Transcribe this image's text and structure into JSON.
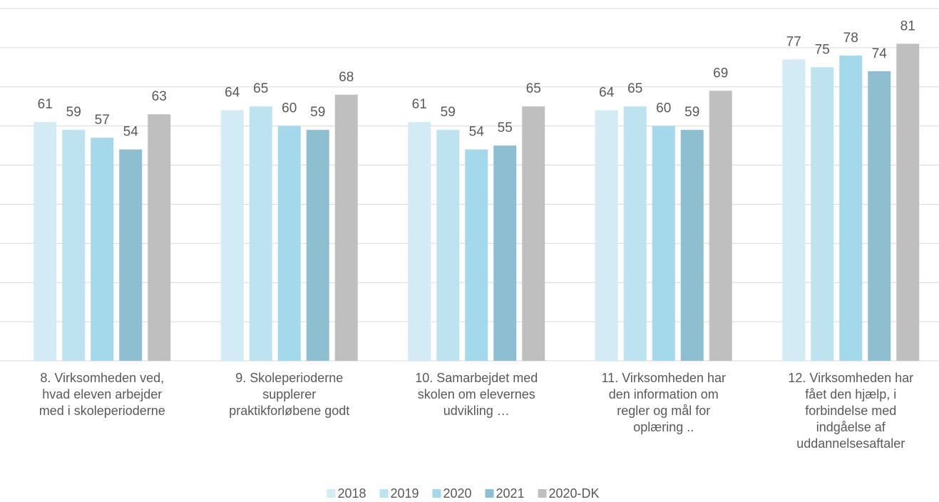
{
  "chart_data": {
    "type": "bar",
    "categories": [
      "8. Virksomheden ved,\nhvad eleven arbejder\nmed i skoleperioderne",
      "9. Skoleperioderne\nsupplerer\npraktikforløbene godt",
      "10. Samarbejdet med\nskolen om elevernes\nudvikling …",
      "11. Virksomheden har\nden information om\nregler og mål for\noplæring ..",
      "12. Virksomheden har\nfået den hjælp,  i\nforbindelse med\nindgåelse af\nuddannelsesaftaler"
    ],
    "series": [
      {
        "name": "2018",
        "color": "#d3ebf5",
        "values": [
          61,
          64,
          61,
          64,
          77
        ]
      },
      {
        "name": "2019",
        "color": "#bde3f0",
        "values": [
          59,
          65,
          59,
          65,
          75
        ]
      },
      {
        "name": "2020",
        "color": "#a3d9ea",
        "values": [
          57,
          60,
          54,
          60,
          78
        ]
      },
      {
        "name": "2021",
        "color": "#8ebfd0",
        "values": [
          54,
          59,
          55,
          59,
          74
        ]
      },
      {
        "name": "2020-DK",
        "color": "#bfbfbf",
        "values": [
          63,
          68,
          65,
          69,
          81
        ]
      }
    ],
    "ylim": [
      0,
      90
    ],
    "yticks": [
      0,
      10,
      20,
      30,
      40,
      50,
      60,
      70,
      80,
      90
    ],
    "grid": true,
    "legend": "bottom"
  }
}
